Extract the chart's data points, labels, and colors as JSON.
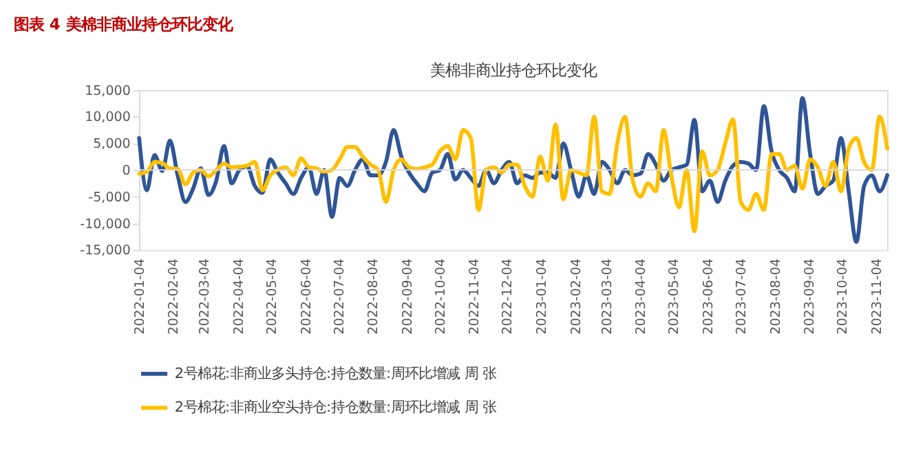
{
  "chart_data": {
    "type": "line",
    "title": "图表 4  美棉非商业持仓环比变化",
    "subtitle": "美棉非商业持仓环比变化",
    "x": [
      "2022-01-04",
      "2022-01-11",
      "2022-01-18",
      "2022-01-25",
      "2022-02-01",
      "2022-02-08",
      "2022-02-15",
      "2022-02-22",
      "2022-03-01",
      "2022-03-08",
      "2022-03-15",
      "2022-03-22",
      "2022-03-29",
      "2022-04-05",
      "2022-04-12",
      "2022-04-19",
      "2022-04-26",
      "2022-05-03",
      "2022-05-10",
      "2022-05-17",
      "2022-05-24",
      "2022-05-31",
      "2022-06-07",
      "2022-06-14",
      "2022-06-21",
      "2022-06-28",
      "2022-07-05",
      "2022-07-12",
      "2022-07-19",
      "2022-07-26",
      "2022-08-02",
      "2022-08-09",
      "2022-08-16",
      "2022-08-23",
      "2022-08-30",
      "2022-09-06",
      "2022-09-13",
      "2022-09-20",
      "2022-09-27",
      "2022-10-04",
      "2022-10-11",
      "2022-10-18",
      "2022-10-25",
      "2022-11-01",
      "2022-11-08",
      "2022-11-15",
      "2022-11-22",
      "2022-11-29",
      "2022-12-06",
      "2022-12-13",
      "2022-12-20",
      "2022-12-27",
      "2023-01-03",
      "2023-01-10",
      "2023-01-17",
      "2023-01-24",
      "2023-01-31",
      "2023-02-07",
      "2023-02-14",
      "2023-02-21",
      "2023-02-28",
      "2023-03-07",
      "2023-03-14",
      "2023-03-21",
      "2023-03-28",
      "2023-04-04",
      "2023-04-11",
      "2023-04-18",
      "2023-04-25",
      "2023-05-02",
      "2023-05-09",
      "2023-05-16",
      "2023-05-23",
      "2023-05-30",
      "2023-06-06",
      "2023-06-13",
      "2023-06-20",
      "2023-06-27",
      "2023-07-04",
      "2023-07-11",
      "2023-07-18",
      "2023-07-25",
      "2023-08-01",
      "2023-08-08",
      "2023-08-15",
      "2023-08-22",
      "2023-08-29",
      "2023-09-05",
      "2023-09-12",
      "2023-09-19",
      "2023-09-26",
      "2023-10-03",
      "2023-10-10",
      "2023-10-17",
      "2023-10-24",
      "2023-10-31",
      "2023-11-07",
      "2023-11-14"
    ],
    "series": [
      {
        "name": "2号棉花:非商业多头持仓:持仓数量:周环比增减 周 张",
        "color": "#2f5597",
        "values": [
          6000,
          -3800,
          2800,
          -200,
          5500,
          -1000,
          -6000,
          -3500,
          300,
          -4700,
          -2000,
          4500,
          -2500,
          0,
          700,
          -3000,
          -4300,
          2000,
          -500,
          -2500,
          -4500,
          -1500,
          500,
          -4500,
          0,
          -8800,
          -1500,
          -3000,
          0,
          2000,
          -1000,
          -1000,
          1500,
          7500,
          2500,
          -500,
          -2500,
          -4000,
          -500,
          0,
          3000,
          -1800,
          0,
          -1500,
          -3000,
          0,
          -2500,
          0,
          1500,
          -2500,
          -1000,
          -1500,
          -500,
          -500,
          -1500,
          5000,
          0,
          -5000,
          -1000,
          -4500,
          1500,
          0,
          -2500,
          0,
          -1000,
          -700,
          3000,
          1000,
          -2000,
          0,
          500,
          1000,
          9400,
          -4000,
          -2000,
          -6000,
          -2000,
          800,
          1500,
          1200,
          0,
          12000,
          3500,
          0,
          -1500,
          -4000,
          13500,
          3000,
          -4500,
          -3000,
          -2000,
          6000,
          -4000,
          -13500,
          -3000,
          -1000,
          -4000,
          -1000
        ]
      },
      {
        "name": "2号棉花:非商业空头持仓:持仓数量:周环比增减 周 张",
        "color": "#ffc000",
        "values": [
          -700,
          -300,
          1500,
          1300,
          300,
          200,
          -2700,
          -500,
          0,
          -1200,
          0,
          1200,
          500,
          600,
          800,
          1500,
          -3800,
          -1000,
          0,
          500,
          -1000,
          2200,
          500,
          300,
          -300,
          0,
          2000,
          4300,
          4300,
          2500,
          1000,
          0,
          -6000,
          0,
          2000,
          500,
          200,
          500,
          1000,
          3500,
          4500,
          2000,
          7500,
          6000,
          -7500,
          0,
          500,
          -500,
          1000,
          1000,
          -3000,
          -5000,
          2500,
          -2000,
          8500,
          -5500,
          0,
          -500,
          -1000,
          10000,
          -4000,
          -4500,
          5000,
          10000,
          -2000,
          -5000,
          -2500,
          -4000,
          7500,
          -1000,
          -7000,
          0,
          -11500,
          3500,
          -1000,
          0,
          5000,
          9500,
          -6000,
          -7500,
          -4500,
          -7500,
          3000,
          3000,
          0,
          800,
          -3500,
          2000,
          500,
          -3000,
          1500,
          -4000,
          4000,
          6000,
          1500,
          0,
          10000,
          4000
        ]
      }
    ],
    "xlim": [
      "2022-01-04",
      "2023-11-14"
    ],
    "xticks": [
      "2022-01-04",
      "2022-02-04",
      "2022-03-04",
      "2022-04-04",
      "2022-05-04",
      "2022-06-04",
      "2022-07-04",
      "2022-08-04",
      "2022-09-04",
      "2022-10-04",
      "2022-11-04",
      "2022-12-04",
      "2023-01-04",
      "2023-02-04",
      "2023-03-04",
      "2023-04-04",
      "2023-05-04",
      "2023-06-04",
      "2023-07-04",
      "2023-08-04",
      "2023-09-04",
      "2023-10-04",
      "2023-11-04"
    ],
    "ylim": [
      -15000,
      15000
    ],
    "yticks": [
      {
        "value": -15000,
        "label": "-15,000"
      },
      {
        "value": -10000,
        "label": "-10,000"
      },
      {
        "value": -5000,
        "label": "-5,000"
      },
      0,
      {
        "value": 5000,
        "label": "5,000"
      },
      {
        "value": 10000,
        "label": "10,000"
      },
      {
        "value": 15000,
        "label": "15,000"
      }
    ],
    "ref_lines": [
      {
        "axis": "y",
        "value": 0,
        "color": "#d9d9d9"
      }
    ],
    "grid": false,
    "legend": "bottom",
    "marker": "none",
    "line_style": "solid"
  }
}
